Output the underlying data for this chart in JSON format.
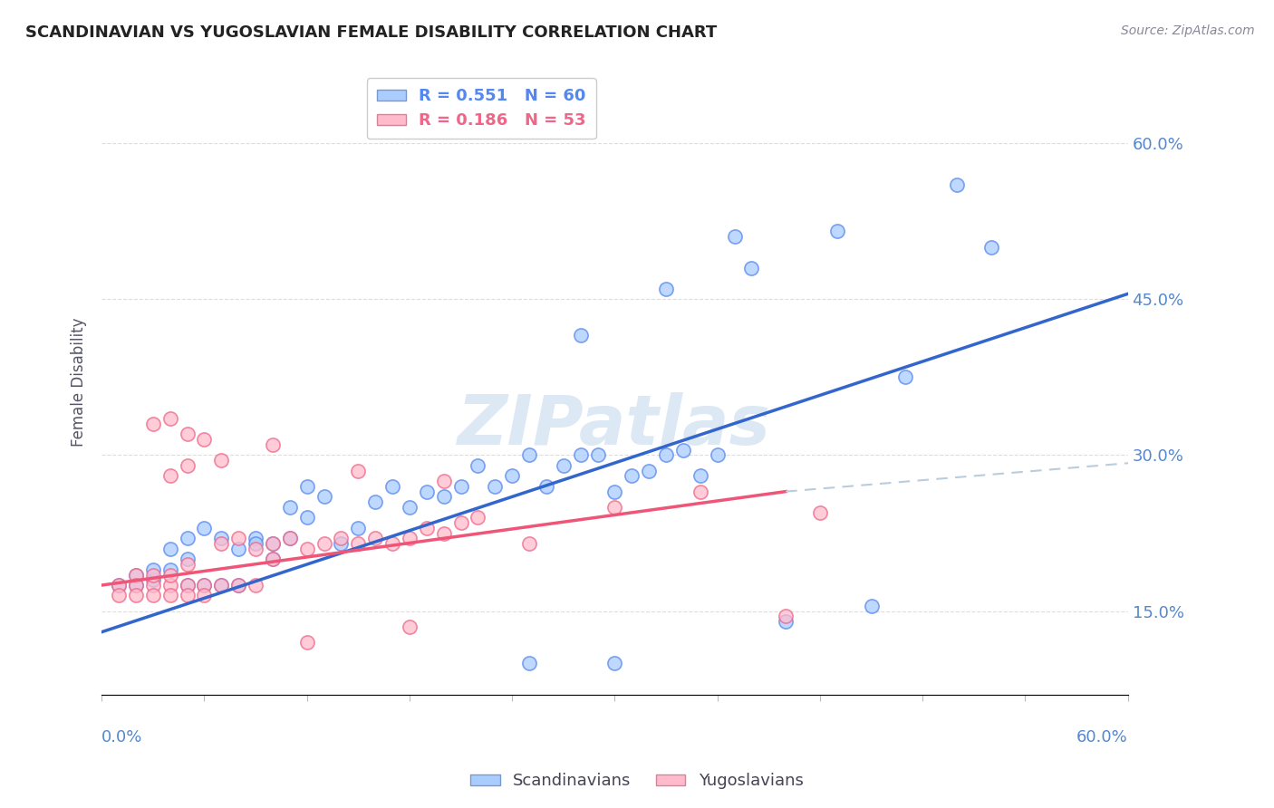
{
  "title": "SCANDINAVIAN VS YUGOSLAVIAN FEMALE DISABILITY CORRELATION CHART",
  "source": "Source: ZipAtlas.com",
  "ylabel": "Female Disability",
  "ytick_labels": [
    "15.0%",
    "30.0%",
    "45.0%",
    "60.0%"
  ],
  "ytick_values": [
    0.15,
    0.3,
    0.45,
    0.6
  ],
  "xlim": [
    0.0,
    0.6
  ],
  "ylim": [
    0.07,
    0.67
  ],
  "legend1_entries": [
    {
      "label": "R = 0.551   N = 60",
      "color": "#5588ee"
    },
    {
      "label": "R = 0.186   N = 53",
      "color": "#ee6688"
    }
  ],
  "legend2_entries": [
    {
      "label": "Scandinavians",
      "color": "#aaccff"
    },
    {
      "label": "Yugoslavians",
      "color": "#ffaabb"
    }
  ],
  "watermark": "ZIPatlas",
  "scatter_blue": [
    [
      0.01,
      0.175
    ],
    [
      0.02,
      0.175
    ],
    [
      0.02,
      0.185
    ],
    [
      0.03,
      0.18
    ],
    [
      0.03,
      0.19
    ],
    [
      0.04,
      0.19
    ],
    [
      0.04,
      0.21
    ],
    [
      0.05,
      0.175
    ],
    [
      0.05,
      0.2
    ],
    [
      0.05,
      0.22
    ],
    [
      0.06,
      0.175
    ],
    [
      0.06,
      0.23
    ],
    [
      0.07,
      0.175
    ],
    [
      0.07,
      0.22
    ],
    [
      0.08,
      0.21
    ],
    [
      0.08,
      0.175
    ],
    [
      0.09,
      0.22
    ],
    [
      0.09,
      0.215
    ],
    [
      0.1,
      0.2
    ],
    [
      0.1,
      0.215
    ],
    [
      0.11,
      0.22
    ],
    [
      0.11,
      0.25
    ],
    [
      0.12,
      0.24
    ],
    [
      0.12,
      0.27
    ],
    [
      0.13,
      0.26
    ],
    [
      0.14,
      0.215
    ],
    [
      0.15,
      0.23
    ],
    [
      0.16,
      0.255
    ],
    [
      0.17,
      0.27
    ],
    [
      0.18,
      0.25
    ],
    [
      0.19,
      0.265
    ],
    [
      0.2,
      0.26
    ],
    [
      0.21,
      0.27
    ],
    [
      0.22,
      0.29
    ],
    [
      0.23,
      0.27
    ],
    [
      0.24,
      0.28
    ],
    [
      0.25,
      0.3
    ],
    [
      0.26,
      0.27
    ],
    [
      0.27,
      0.29
    ],
    [
      0.28,
      0.3
    ],
    [
      0.29,
      0.3
    ],
    [
      0.3,
      0.265
    ],
    [
      0.31,
      0.28
    ],
    [
      0.32,
      0.285
    ],
    [
      0.28,
      0.415
    ],
    [
      0.33,
      0.46
    ],
    [
      0.38,
      0.48
    ],
    [
      0.43,
      0.515
    ],
    [
      0.47,
      0.375
    ],
    [
      0.52,
      0.5
    ],
    [
      0.33,
      0.3
    ],
    [
      0.34,
      0.305
    ],
    [
      0.35,
      0.28
    ],
    [
      0.36,
      0.3
    ],
    [
      0.25,
      0.1
    ],
    [
      0.3,
      0.1
    ],
    [
      0.4,
      0.14
    ],
    [
      0.45,
      0.155
    ],
    [
      0.37,
      0.51
    ],
    [
      0.5,
      0.56
    ]
  ],
  "scatter_pink": [
    [
      0.01,
      0.175
    ],
    [
      0.01,
      0.165
    ],
    [
      0.02,
      0.185
    ],
    [
      0.02,
      0.175
    ],
    [
      0.02,
      0.165
    ],
    [
      0.03,
      0.175
    ],
    [
      0.03,
      0.185
    ],
    [
      0.03,
      0.165
    ],
    [
      0.04,
      0.175
    ],
    [
      0.04,
      0.185
    ],
    [
      0.04,
      0.165
    ],
    [
      0.05,
      0.175
    ],
    [
      0.05,
      0.195
    ],
    [
      0.05,
      0.165
    ],
    [
      0.06,
      0.175
    ],
    [
      0.06,
      0.165
    ],
    [
      0.06,
      0.315
    ],
    [
      0.07,
      0.175
    ],
    [
      0.07,
      0.215
    ],
    [
      0.07,
      0.295
    ],
    [
      0.08,
      0.175
    ],
    [
      0.08,
      0.22
    ],
    [
      0.09,
      0.175
    ],
    [
      0.09,
      0.21
    ],
    [
      0.1,
      0.215
    ],
    [
      0.1,
      0.2
    ],
    [
      0.1,
      0.31
    ],
    [
      0.11,
      0.22
    ],
    [
      0.12,
      0.21
    ],
    [
      0.12,
      0.12
    ],
    [
      0.13,
      0.215
    ],
    [
      0.14,
      0.22
    ],
    [
      0.15,
      0.215
    ],
    [
      0.15,
      0.285
    ],
    [
      0.16,
      0.22
    ],
    [
      0.17,
      0.215
    ],
    [
      0.18,
      0.22
    ],
    [
      0.18,
      0.135
    ],
    [
      0.19,
      0.23
    ],
    [
      0.2,
      0.225
    ],
    [
      0.2,
      0.275
    ],
    [
      0.04,
      0.28
    ],
    [
      0.05,
      0.29
    ],
    [
      0.03,
      0.33
    ],
    [
      0.04,
      0.335
    ],
    [
      0.05,
      0.32
    ],
    [
      0.21,
      0.235
    ],
    [
      0.22,
      0.24
    ],
    [
      0.25,
      0.215
    ],
    [
      0.3,
      0.25
    ],
    [
      0.35,
      0.265
    ],
    [
      0.4,
      0.145
    ],
    [
      0.42,
      0.245
    ]
  ],
  "blue_line": [
    [
      0.0,
      0.13
    ],
    [
      0.6,
      0.455
    ]
  ],
  "pink_line_solid": [
    [
      0.0,
      0.175
    ],
    [
      0.4,
      0.265
    ]
  ],
  "pink_line_dash": [
    [
      0.4,
      0.265
    ],
    [
      0.62,
      0.295
    ]
  ],
  "blue_line_color": "#3366cc",
  "pink_line_color": "#ee5577",
  "dashed_line_color": "#bbccdd",
  "background_color": "#ffffff",
  "grid_color": "#dddddd",
  "title_color": "#222222",
  "right_axis_color": "#5588cc",
  "watermark_color": "#dde8f5"
}
